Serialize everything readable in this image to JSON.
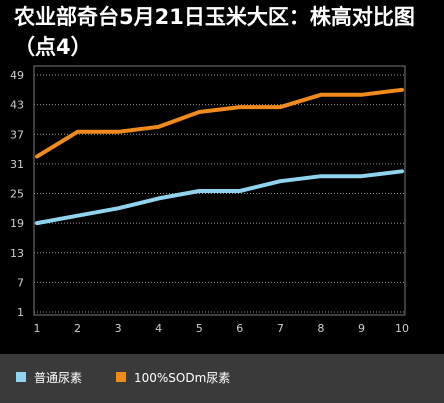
{
  "chart_data": {
    "type": "line",
    "title": "农业部奇台5月21日玉米大区：株高对比图（点4）",
    "x": [
      1,
      2,
      3,
      4,
      5,
      6,
      7,
      8,
      9,
      10
    ],
    "x_ticks": [
      "1",
      "2",
      "3",
      "4",
      "5",
      "6",
      "7",
      "8",
      "9",
      "10"
    ],
    "y_ticks": [
      "1",
      "7",
      "13",
      "19",
      "25",
      "31",
      "37",
      "43",
      "49"
    ],
    "ylim": [
      1,
      49
    ],
    "grid": true,
    "legend_position": "bottom-left",
    "series": [
      {
        "name": "普通尿素",
        "color": "#8fd3ee",
        "values": [
          19,
          20.5,
          22,
          24,
          25.5,
          25.5,
          27.5,
          28.5,
          28.5,
          29.5
        ]
      },
      {
        "name": "100%SODm尿素",
        "color": "#f08a1c",
        "values": [
          32.5,
          37.5,
          37.5,
          38.5,
          41.5,
          42.5,
          42.5,
          45,
          45,
          46
        ]
      }
    ]
  },
  "colors": {
    "background": "#000000",
    "plot_border": "#7a7a7a",
    "grid": "#9a9a9a",
    "tick_text": "#cfcfcf",
    "legend_background": "#3a3a3a"
  }
}
